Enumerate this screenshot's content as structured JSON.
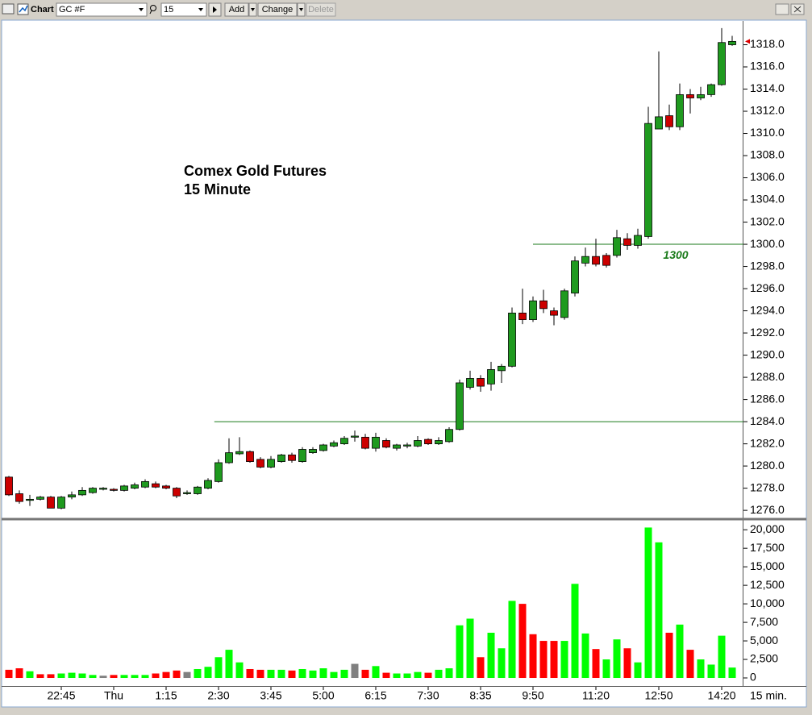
{
  "toolbar": {
    "title": "Chart",
    "symbol": "GC #F",
    "interval": "15",
    "add": "Add",
    "change": "Change",
    "delete": "Delete"
  },
  "chart_data": [
    {
      "type": "candlestick",
      "title": "Comex Gold Futures",
      "subtitle": "15 Minute",
      "categories": [
        null,
        null,
        null,
        null,
        null,
        "22:45",
        null,
        null,
        null,
        null,
        "Thu",
        null,
        null,
        null,
        null,
        "1:15",
        null,
        null,
        null,
        null,
        "2:30",
        null,
        null,
        null,
        null,
        "3:45",
        null,
        null,
        null,
        null,
        "5:00",
        null,
        null,
        null,
        null,
        "6:15",
        null,
        null,
        null,
        null,
        "7:30",
        null,
        null,
        null,
        null,
        "8:35",
        null,
        null,
        null,
        null,
        "9:50",
        null,
        null,
        null,
        null,
        null,
        "11:20",
        null,
        null,
        null,
        null,
        null,
        "12:50",
        null,
        null,
        null,
        null,
        null,
        "14:20",
        null
      ],
      "open": [
        1279.0,
        1277.5,
        1276.9,
        1277.0,
        1277.2,
        1276.2,
        1277.2,
        1277.4,
        1277.6,
        1277.9,
        1277.9,
        1277.8,
        1278.0,
        1278.1,
        1278.4,
        1278.2,
        1278.0,
        1277.5,
        1277.5,
        1278.0,
        1278.6,
        1280.3,
        1281.1,
        1281.3,
        1280.6,
        1279.9,
        1280.4,
        1281.0,
        1280.4,
        1281.2,
        1281.4,
        1281.8,
        1282.0,
        1282.6,
        1282.6,
        1281.6,
        1282.3,
        1281.6,
        1281.8,
        1281.8,
        1282.4,
        1282.0,
        1282.2,
        1283.3,
        1287.1,
        1287.9,
        1287.4,
        1288.6,
        1289.0,
        1293.8,
        1293.2,
        1294.9,
        1294.0,
        1293.4,
        1295.6,
        1298.3,
        1298.9,
        1299.0,
        1299.0,
        1300.5,
        1299.9,
        1300.7,
        1310.4,
        1311.6,
        1310.6,
        1313.5,
        1313.2,
        1313.5,
        1314.4,
        1318.0
      ],
      "high": [
        1279.1,
        1277.8,
        1277.4,
        1277.3,
        1277.3,
        1277.3,
        1277.7,
        1278.1,
        1278.1,
        1278.1,
        1278.0,
        1278.3,
        1278.5,
        1278.8,
        1278.6,
        1278.3,
        1278.1,
        1277.8,
        1278.2,
        1278.9,
        1280.6,
        1282.5,
        1282.6,
        1281.4,
        1280.8,
        1280.9,
        1281.1,
        1281.2,
        1281.7,
        1281.7,
        1282.0,
        1282.3,
        1282.7,
        1283.2,
        1282.9,
        1283.0,
        1282.5,
        1282.0,
        1282.1,
        1282.7,
        1282.5,
        1282.6,
        1283.5,
        1287.8,
        1288.6,
        1288.2,
        1289.4,
        1289.2,
        1294.3,
        1296.0,
        1295.3,
        1295.9,
        1294.3,
        1296.0,
        1298.9,
        1299.7,
        1300.5,
        1299.2,
        1301.3,
        1301.0,
        1301.4,
        1312.4,
        1317.4,
        1312.6,
        1314.5,
        1314.0,
        1314.2,
        1314.5,
        1319.5,
        1318.8
      ],
      "low": [
        1277.3,
        1276.6,
        1276.4,
        1276.9,
        1276.2,
        1276.1,
        1277.0,
        1277.3,
        1277.5,
        1277.8,
        1277.7,
        1277.7,
        1277.9,
        1278.0,
        1278.0,
        1277.9,
        1277.1,
        1277.4,
        1277.4,
        1277.9,
        1278.5,
        1280.2,
        1281.0,
        1280.3,
        1279.8,
        1279.8,
        1280.3,
        1280.3,
        1280.3,
        1281.1,
        1281.3,
        1281.7,
        1281.9,
        1282.2,
        1281.5,
        1281.3,
        1281.6,
        1281.4,
        1281.6,
        1281.7,
        1281.9,
        1281.9,
        1282.1,
        1283.2,
        1286.9,
        1286.7,
        1286.8,
        1287.5,
        1288.9,
        1292.8,
        1293.0,
        1293.8,
        1292.7,
        1293.2,
        1295.3,
        1298.0,
        1298.0,
        1297.9,
        1298.8,
        1299.5,
        1299.6,
        1300.5,
        1310.4,
        1310.3,
        1310.3,
        1311.8,
        1313.0,
        1313.3,
        1314.3,
        1317.9
      ],
      "close": [
        1277.4,
        1276.8,
        1277.0,
        1277.2,
        1276.2,
        1277.2,
        1277.4,
        1277.8,
        1278.0,
        1278.0,
        1277.8,
        1278.2,
        1278.3,
        1278.6,
        1278.1,
        1278.0,
        1277.3,
        1277.6,
        1278.1,
        1278.7,
        1280.3,
        1281.2,
        1281.3,
        1280.4,
        1279.9,
        1280.6,
        1281.0,
        1280.5,
        1281.5,
        1281.5,
        1281.9,
        1282.1,
        1282.5,
        1282.7,
        1281.6,
        1282.6,
        1281.7,
        1281.9,
        1281.9,
        1282.3,
        1282.0,
        1282.3,
        1283.3,
        1287.5,
        1287.9,
        1287.2,
        1288.7,
        1289.0,
        1293.8,
        1293.2,
        1294.9,
        1294.2,
        1293.6,
        1295.8,
        1298.5,
        1298.9,
        1298.2,
        1298.1,
        1300.6,
        1299.9,
        1300.8,
        1310.9,
        1311.5,
        1310.6,
        1313.5,
        1313.2,
        1313.5,
        1314.4,
        1318.2,
        1318.3
      ],
      "up_color": "#1f9a1f",
      "down_color": "#cc0000",
      "ylim": [
        1275.5,
        1320.0
      ],
      "yticks": [
        {
          "value": 1276,
          "label": "1276.0"
        },
        {
          "value": 1278,
          "label": "1278.0"
        },
        {
          "value": 1280,
          "label": "1280.0"
        },
        {
          "value": 1282,
          "label": "1282.0"
        },
        {
          "value": 1284,
          "label": "1284.0"
        },
        {
          "value": 1286,
          "label": "1286.0"
        },
        {
          "value": 1288,
          "label": "1288.0"
        },
        {
          "value": 1290,
          "label": "1290.0"
        },
        {
          "value": 1292,
          "label": "1292.0"
        },
        {
          "value": 1294,
          "label": "1294.0"
        },
        {
          "value": 1296,
          "label": "1296.0"
        },
        {
          "value": 1298,
          "label": "1298.0"
        },
        {
          "value": 1300,
          "label": "1300.0"
        },
        {
          "value": 1302,
          "label": "1302.0"
        },
        {
          "value": 1304,
          "label": "1304.0"
        },
        {
          "value": 1306,
          "label": "1306.0"
        },
        {
          "value": 1308,
          "label": "1308.0"
        },
        {
          "value": 1310,
          "label": "1310.0"
        },
        {
          "value": 1312,
          "label": "1312.0"
        },
        {
          "value": 1314,
          "label": "1314.0"
        },
        {
          "value": 1316,
          "label": "1316.0"
        },
        {
          "value": 1318,
          "label": "1318.0"
        }
      ],
      "reference_lines": [
        {
          "value": 1300,
          "label": "1300",
          "color": "#1a7a1a"
        },
        {
          "value": 1284,
          "color": "#1a7a1a"
        }
      ]
    },
    {
      "type": "bar",
      "xlabel": "15 min.",
      "values": [
        1100,
        1300,
        900,
        500,
        500,
        600,
        700,
        600,
        400,
        300,
        400,
        400,
        400,
        400,
        600,
        800,
        1000,
        800,
        1200,
        1500,
        2800,
        3800,
        2100,
        1200,
        1100,
        1100,
        1100,
        1000,
        1200,
        1000,
        1300,
        800,
        1100,
        1900,
        1100,
        1600,
        700,
        600,
        600,
        800,
        700,
        1100,
        1300,
        7100,
        8000,
        2800,
        6100,
        4000,
        10400,
        10000,
        5900,
        5000,
        5000,
        5000,
        12700,
        6000,
        3900,
        2500,
        5200,
        4000,
        2100,
        20300,
        18300,
        6100,
        7200,
        3800,
        2500,
        1800,
        5700,
        1400
      ],
      "colors": [
        "#ff0000",
        "#ff0000",
        "#00ff00",
        "#ff0000",
        "#ff0000",
        "#00ff00",
        "#00ff00",
        "#00ff00",
        "#00ff00",
        "#808080",
        "#ff0000",
        "#00ff00",
        "#00ff00",
        "#00ff00",
        "#ff0000",
        "#ff0000",
        "#ff0000",
        "#808080",
        "#00ff00",
        "#00ff00",
        "#00ff00",
        "#00ff00",
        "#00ff00",
        "#ff0000",
        "#ff0000",
        "#00ff00",
        "#00ff00",
        "#ff0000",
        "#00ff00",
        "#00ff00",
        "#00ff00",
        "#00ff00",
        "#00ff00",
        "#808080",
        "#ff0000",
        "#00ff00",
        "#ff0000",
        "#00ff00",
        "#00ff00",
        "#00ff00",
        "#ff0000",
        "#00ff00",
        "#00ff00",
        "#00ff00",
        "#00ff00",
        "#ff0000",
        "#00ff00",
        "#00ff00",
        "#00ff00",
        "#ff0000",
        "#ff0000",
        "#ff0000",
        "#ff0000",
        "#00ff00",
        "#00ff00",
        "#00ff00",
        "#ff0000",
        "#00ff00",
        "#00ff00",
        "#ff0000",
        "#00ff00",
        "#00ff00",
        "#00ff00",
        "#ff0000",
        "#00ff00",
        "#ff0000",
        "#00ff00",
        "#00ff00",
        "#00ff00",
        "#00ff00"
      ],
      "ylim": [
        -760,
        21000
      ],
      "yticks": [
        0,
        {
          "value": 2500,
          "label": "2,500"
        },
        {
          "value": 5000,
          "label": "5,000"
        },
        {
          "value": 7500,
          "label": "7,500"
        },
        {
          "value": 10000,
          "label": "10,000"
        },
        {
          "value": 12500,
          "label": "12,500"
        },
        {
          "value": 15000,
          "label": "15,000"
        },
        {
          "value": 17500,
          "label": "17,500"
        },
        {
          "value": 20000,
          "label": "20,000"
        }
      ]
    }
  ]
}
